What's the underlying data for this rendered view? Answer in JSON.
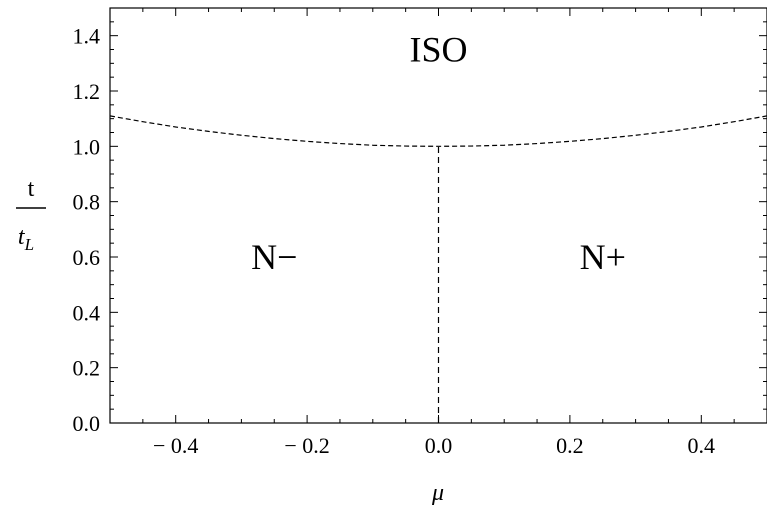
{
  "chart_data": {
    "type": "line",
    "title": "",
    "xlabel": "μ",
    "ylabel": {
      "numerator": "t",
      "denominator_base": "t",
      "denominator_sub": "L"
    },
    "xlim": [
      -0.5,
      0.5
    ],
    "ylim": [
      0.0,
      1.5
    ],
    "x_ticks": [
      -0.4,
      -0.2,
      0.0,
      0.2,
      0.4
    ],
    "x_tick_labels": [
      "− 0.4",
      "− 0.2",
      "0.0",
      "0.2",
      "0.4"
    ],
    "y_ticks": [
      0.0,
      0.2,
      0.4,
      0.6,
      0.8,
      1.0,
      1.2,
      1.4
    ],
    "y_tick_labels": [
      "0.0",
      "0.2",
      "0.4",
      "0.6",
      "0.8",
      "1.0",
      "1.2",
      "1.4"
    ],
    "grid": false,
    "series": [
      {
        "style": "dashed",
        "x": [
          -0.5,
          -0.45,
          -0.4,
          -0.35,
          -0.3,
          -0.25,
          -0.2,
          -0.15,
          -0.1,
          -0.05,
          0.0,
          0.05,
          0.1,
          0.15,
          0.2,
          0.25,
          0.3,
          0.35,
          0.4,
          0.45,
          0.5
        ],
        "y": [
          1.11,
          1.089,
          1.07,
          1.054,
          1.04,
          1.028,
          1.018,
          1.01,
          1.004,
          1.001,
          1.0,
          1.001,
          1.004,
          1.01,
          1.018,
          1.028,
          1.04,
          1.054,
          1.07,
          1.089,
          1.11
        ]
      },
      {
        "style": "dashed",
        "x": [
          0.0,
          0.0
        ],
        "y": [
          0.0,
          1.0
        ]
      }
    ],
    "annotations": [
      {
        "text": "ISO",
        "x": 0.0,
        "y": 1.35
      },
      {
        "text": "N−",
        "x": -0.25,
        "y": 0.6
      },
      {
        "text": "N+",
        "x": 0.25,
        "y": 0.6
      }
    ]
  }
}
